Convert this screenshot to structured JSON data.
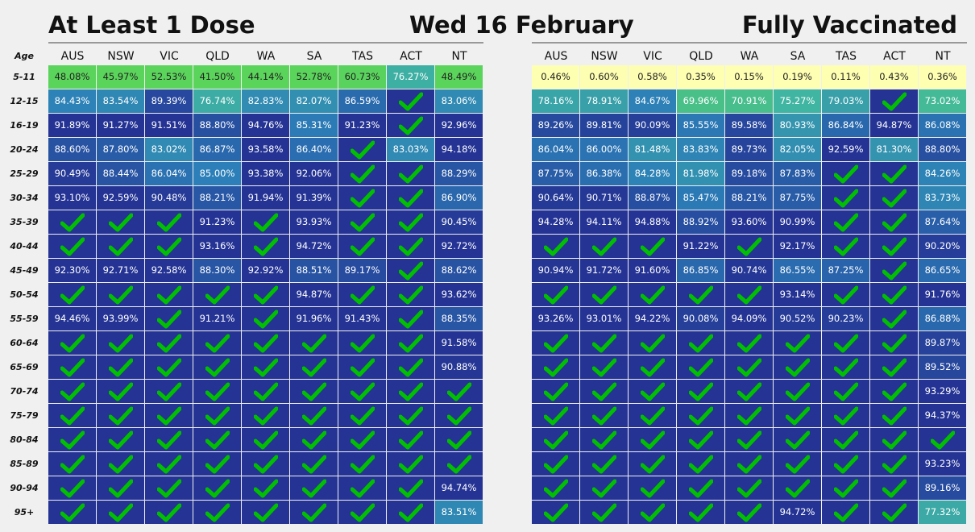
{
  "titles": {
    "left": "At Least 1 Dose",
    "center": "Wed 16 February",
    "right": "Fully Vaccinated"
  },
  "age_header": "Age",
  "icons": {
    "complete": "check-icon"
  },
  "colors": {
    "page_bg": "#f0f0f0",
    "complete_bg": "#253494",
    "check": "#00c000",
    "scale": [
      "#ffffb2",
      "#5bd45b",
      "#41b6a0",
      "#2c7fb8",
      "#253494"
    ]
  },
  "chart_data": [
    {
      "type": "heatmap",
      "title": "At Least 1 Dose",
      "columns": [
        "AUS",
        "NSW",
        "VIC",
        "QLD",
        "WA",
        "SA",
        "TAS",
        "ACT",
        "NT"
      ],
      "rows": [
        "5-11",
        "12-15",
        "16-19",
        "20-24",
        "25-29",
        "30-34",
        "35-39",
        "40-44",
        "45-49",
        "50-54",
        "55-59",
        "60-64",
        "65-69",
        "70-74",
        "75-79",
        "80-84",
        "85-89",
        "90-94",
        "95+"
      ],
      "values": [
        [
          "48.08%",
          "45.97%",
          "52.53%",
          "41.50%",
          "44.14%",
          "52.78%",
          "60.73%",
          "76.27%",
          "48.49%"
        ],
        [
          "84.43%",
          "83.54%",
          "89.39%",
          "76.74%",
          "82.83%",
          "82.07%",
          "86.59%",
          "check",
          "83.06%"
        ],
        [
          "91.89%",
          "91.27%",
          "91.51%",
          "88.80%",
          "94.76%",
          "85.31%",
          "91.23%",
          "check",
          "92.96%"
        ],
        [
          "88.60%",
          "87.80%",
          "83.02%",
          "86.87%",
          "93.58%",
          "86.40%",
          "check",
          "83.03%",
          "94.18%"
        ],
        [
          "90.49%",
          "88.44%",
          "86.04%",
          "85.00%",
          "93.38%",
          "92.06%",
          "check",
          "check",
          "88.29%"
        ],
        [
          "93.10%",
          "92.59%",
          "90.48%",
          "88.21%",
          "91.94%",
          "91.39%",
          "check",
          "check",
          "86.90%"
        ],
        [
          "check",
          "check",
          "check",
          "91.23%",
          "check",
          "93.93%",
          "check",
          "check",
          "90.45%"
        ],
        [
          "check",
          "check",
          "check",
          "93.16%",
          "check",
          "94.72%",
          "check",
          "check",
          "92.72%"
        ],
        [
          "92.30%",
          "92.71%",
          "92.58%",
          "88.30%",
          "92.92%",
          "88.51%",
          "89.17%",
          "check",
          "88.62%"
        ],
        [
          "check",
          "check",
          "check",
          "check",
          "check",
          "94.87%",
          "check",
          "check",
          "93.62%"
        ],
        [
          "94.46%",
          "93.99%",
          "check",
          "91.21%",
          "check",
          "91.96%",
          "91.43%",
          "check",
          "88.35%"
        ],
        [
          "check",
          "check",
          "check",
          "check",
          "check",
          "check",
          "check",
          "check",
          "91.58%"
        ],
        [
          "check",
          "check",
          "check",
          "check",
          "check",
          "check",
          "check",
          "check",
          "90.88%"
        ],
        [
          "check",
          "check",
          "check",
          "check",
          "check",
          "check",
          "check",
          "check",
          "check"
        ],
        [
          "check",
          "check",
          "check",
          "check",
          "check",
          "check",
          "check",
          "check",
          "check"
        ],
        [
          "check",
          "check",
          "check",
          "check",
          "check",
          "check",
          "check",
          "check",
          "check"
        ],
        [
          "check",
          "check",
          "check",
          "check",
          "check",
          "check",
          "check",
          "check",
          "check"
        ],
        [
          "check",
          "check",
          "check",
          "check",
          "check",
          "check",
          "check",
          "check",
          "94.74%"
        ],
        [
          "check",
          "check",
          "check",
          "check",
          "check",
          "check",
          "check",
          "check",
          "83.51%"
        ]
      ]
    },
    {
      "type": "heatmap",
      "title": "Fully Vaccinated",
      "columns": [
        "AUS",
        "NSW",
        "VIC",
        "QLD",
        "WA",
        "SA",
        "TAS",
        "ACT",
        "NT"
      ],
      "rows": [
        "5-11",
        "12-15",
        "16-19",
        "20-24",
        "25-29",
        "30-34",
        "35-39",
        "40-44",
        "45-49",
        "50-54",
        "55-59",
        "60-64",
        "65-69",
        "70-74",
        "75-79",
        "80-84",
        "85-89",
        "90-94",
        "95+"
      ],
      "values": [
        [
          "0.46%",
          "0.60%",
          "0.58%",
          "0.35%",
          "0.15%",
          "0.19%",
          "0.11%",
          "0.43%",
          "0.36%"
        ],
        [
          "78.16%",
          "78.91%",
          "84.67%",
          "69.96%",
          "70.91%",
          "75.27%",
          "79.03%",
          "check",
          "73.02%"
        ],
        [
          "89.26%",
          "89.81%",
          "90.09%",
          "85.55%",
          "89.58%",
          "80.93%",
          "86.84%",
          "94.87%",
          "86.08%"
        ],
        [
          "86.04%",
          "86.00%",
          "81.48%",
          "83.83%",
          "89.73%",
          "82.05%",
          "92.59%",
          "81.30%",
          "88.80%"
        ],
        [
          "87.75%",
          "86.38%",
          "84.28%",
          "81.98%",
          "89.18%",
          "87.83%",
          "check",
          "check",
          "84.26%"
        ],
        [
          "90.64%",
          "90.71%",
          "88.87%",
          "85.47%",
          "88.21%",
          "87.75%",
          "check",
          "check",
          "83.73%"
        ],
        [
          "94.28%",
          "94.11%",
          "94.88%",
          "88.92%",
          "93.60%",
          "90.99%",
          "check",
          "check",
          "87.64%"
        ],
        [
          "check",
          "check",
          "check",
          "91.22%",
          "check",
          "92.17%",
          "check",
          "check",
          "90.20%"
        ],
        [
          "90.94%",
          "91.72%",
          "91.60%",
          "86.85%",
          "90.74%",
          "86.55%",
          "87.25%",
          "check",
          "86.65%"
        ],
        [
          "check",
          "check",
          "check",
          "check",
          "check",
          "93.14%",
          "check",
          "check",
          "91.76%"
        ],
        [
          "93.26%",
          "93.01%",
          "94.22%",
          "90.08%",
          "94.09%",
          "90.52%",
          "90.23%",
          "check",
          "86.88%"
        ],
        [
          "check",
          "check",
          "check",
          "check",
          "check",
          "check",
          "check",
          "check",
          "89.87%"
        ],
        [
          "check",
          "check",
          "check",
          "check",
          "check",
          "check",
          "check",
          "check",
          "89.52%"
        ],
        [
          "check",
          "check",
          "check",
          "check",
          "check",
          "check",
          "check",
          "check",
          "93.29%"
        ],
        [
          "check",
          "check",
          "check",
          "check",
          "check",
          "check",
          "check",
          "check",
          "94.37%"
        ],
        [
          "check",
          "check",
          "check",
          "check",
          "check",
          "check",
          "check",
          "check",
          "check"
        ],
        [
          "check",
          "check",
          "check",
          "check",
          "check",
          "check",
          "check",
          "check",
          "93.23%"
        ],
        [
          "check",
          "check",
          "check",
          "check",
          "check",
          "check",
          "check",
          "check",
          "89.16%"
        ],
        [
          "check",
          "check",
          "check",
          "check",
          "check",
          "94.72%",
          "check",
          "check",
          "77.32%"
        ]
      ]
    }
  ]
}
